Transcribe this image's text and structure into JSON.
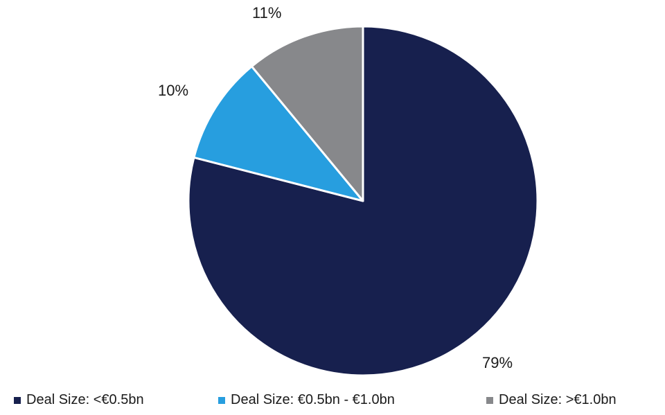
{
  "chart_data": {
    "type": "pie",
    "title": "",
    "categories": [
      "Deal Size: <€0.5bn",
      "Deal Size: €0.5bn - €1.0bn",
      "Deal Size: >€1.0bn"
    ],
    "values": [
      79,
      10,
      11
    ],
    "labels": [
      "79%",
      "10%",
      "11%"
    ],
    "colors": [
      "#17204e",
      "#279edf",
      "#87888b"
    ],
    "start_angle_deg": 0,
    "direction": "clockwise",
    "legend_position": "bottom"
  },
  "legend": [
    {
      "label": "Deal Size: <€0.5bn",
      "color": "#17204e"
    },
    {
      "label": "Deal Size: €0.5bn - €1.0bn",
      "color": "#279edf"
    },
    {
      "label": "Deal Size: >€1.0bn",
      "color": "#87888b"
    }
  ]
}
